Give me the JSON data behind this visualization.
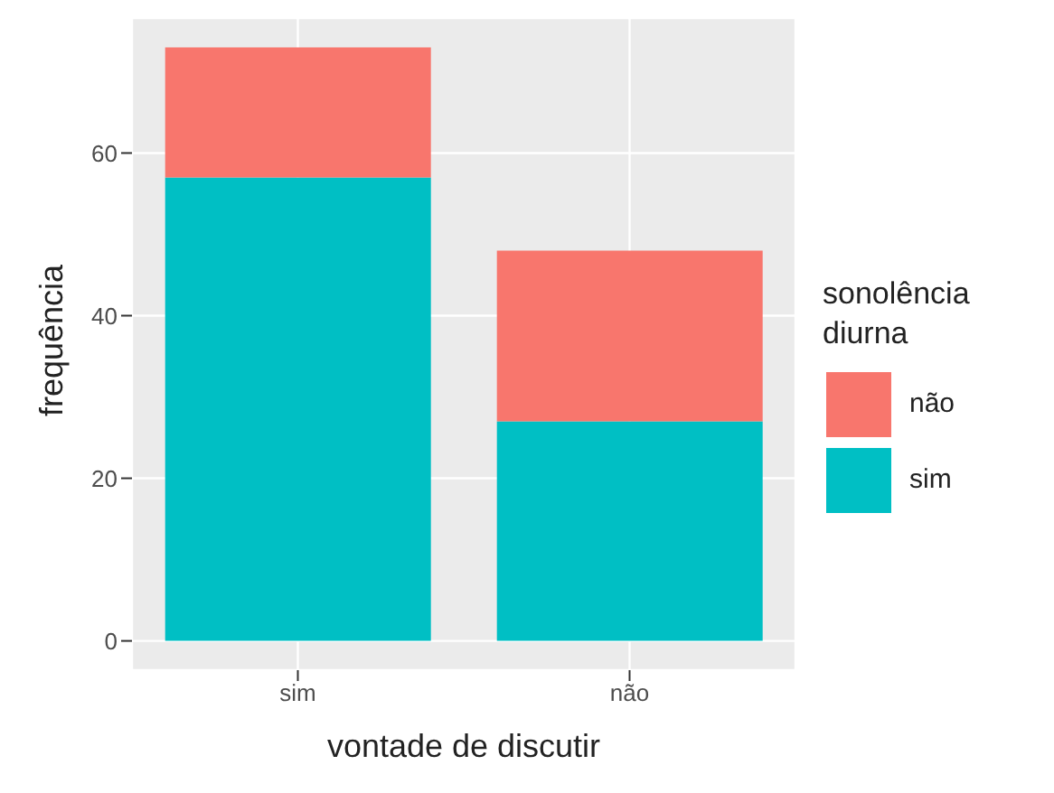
{
  "chart_data": {
    "type": "bar",
    "stacked": true,
    "xlabel": "vontade de discutir",
    "ylabel": "frequência",
    "legend_title": "sonolência diurna",
    "categories": [
      "sim",
      "não"
    ],
    "series": [
      {
        "name": "sim",
        "color": "#00bfc4",
        "values": [
          57,
          27
        ]
      },
      {
        "name": "não",
        "color": "#f8766d",
        "values": [
          16,
          21
        ]
      }
    ],
    "ylim": [
      -3.6,
      76.6
    ],
    "yticks": [
      0,
      20,
      40,
      60
    ],
    "grid": true,
    "legend": "right"
  }
}
